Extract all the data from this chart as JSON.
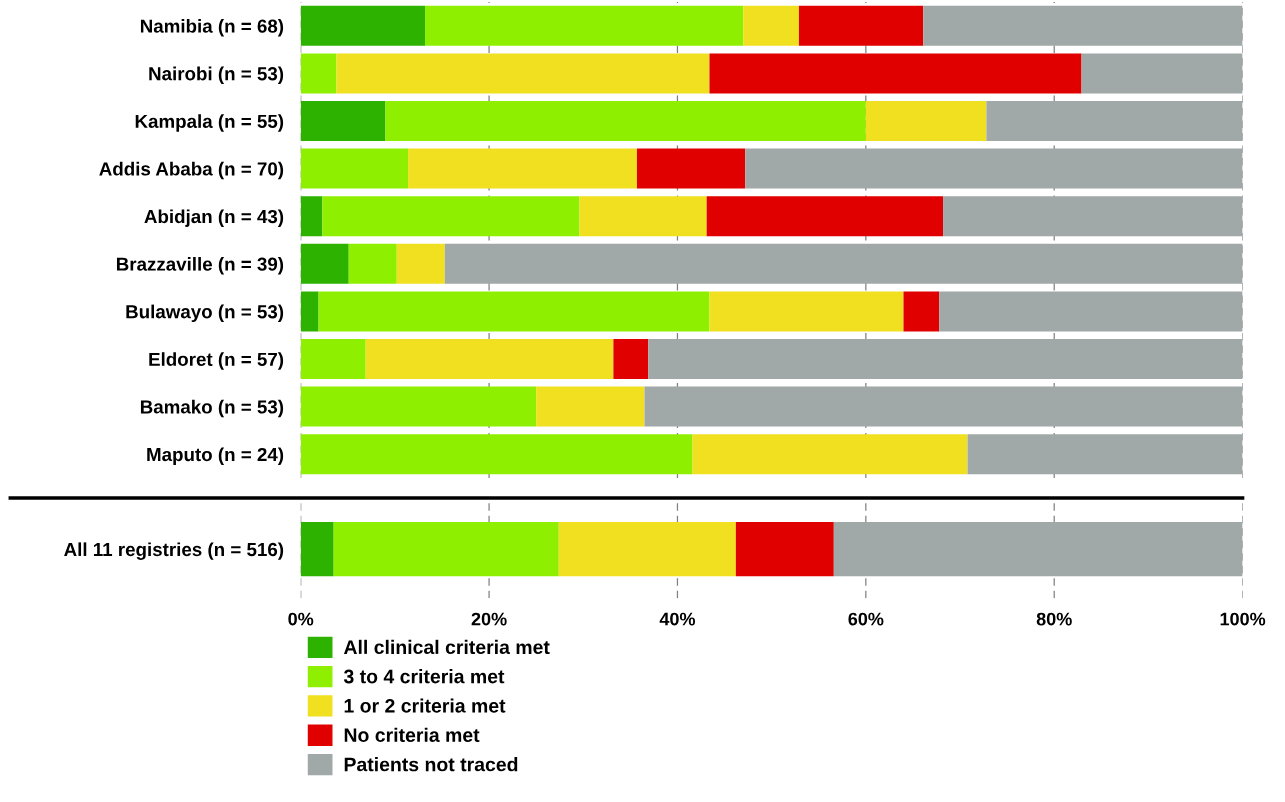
{
  "chart_data": [
    {
      "type": "bar",
      "orientation": "horizontal",
      "stacked": true,
      "tick_labels": "y",
      "grid": "x",
      "categories": [
        "Namibia (n = 68)",
        "Nairobi (n = 53)",
        "Kampala (n = 55)",
        "Addis Ababa (n = 70)",
        "Abidjan (n = 43)",
        "Brazzaville (n = 39)",
        "Bulawayo (n = 53)",
        "Eldoret (n = 57)",
        "Bamako (n = 53)",
        "Maputo (n = 24)"
      ],
      "xlim": [
        0,
        100
      ],
      "xticks": [
        {
          "value": 0,
          "label": null
        },
        {
          "value": 20,
          "label": null
        },
        {
          "value": 40,
          "label": null
        },
        {
          "value": 60,
          "label": null
        },
        {
          "value": 80,
          "label": null
        },
        {
          "value": 100,
          "label": null
        }
      ],
      "series": [
        {
          "color": "#2db200",
          "values": [
            13.2,
            0,
            9.0,
            0,
            2.3,
            5.1,
            1.9,
            0,
            0,
            0
          ]
        },
        {
          "color": "#8ef000",
          "values": [
            33.8,
            3.8,
            51.0,
            11.4,
            27.3,
            5.1,
            41.5,
            6.9,
            25.0,
            41.6
          ]
        },
        {
          "color": "#f0e020",
          "values": [
            5.9,
            39.6,
            12.8,
            24.3,
            13.5,
            5.1,
            20.6,
            26.3,
            11.5,
            29.2
          ]
        },
        {
          "color": "#e00000",
          "values": [
            13.2,
            39.5,
            0,
            11.5,
            25.1,
            0,
            3.8,
            3.7,
            0,
            0
          ]
        },
        {
          "color": "#a0a8a8",
          "values": [
            33.9,
            17.1,
            27.2,
            52.8,
            31.8,
            84.7,
            32.2,
            63.1,
            63.5,
            29.2
          ]
        }
      ]
    },
    {
      "type": "bar",
      "orientation": "horizontal",
      "stacked": true,
      "grid": "x",
      "legend": "bottom",
      "categories": [
        "All 11 registries (n = 516)"
      ],
      "xlim": [
        0,
        100
      ],
      "xticks": [
        {
          "value": 0,
          "label": "0%"
        },
        {
          "value": 20,
          "label": "20%"
        },
        {
          "value": 40,
          "label": "40%"
        },
        {
          "value": 60,
          "label": "60%"
        },
        {
          "value": 80,
          "label": "80%"
        },
        {
          "value": 100,
          "label": "100%"
        }
      ],
      "series": [
        {
          "name": "All clinical criteria met",
          "color": "#2db200",
          "values": [
            3.5
          ]
        },
        {
          "name": "3 to 4 criteria met",
          "color": "#8ef000",
          "values": [
            23.9
          ]
        },
        {
          "name": "1 or 2 criteria met",
          "color": "#f0e020",
          "values": [
            18.8
          ]
        },
        {
          "name": "No criteria met",
          "color": "#e00000",
          "values": [
            10.4
          ]
        },
        {
          "name": "Patients not traced",
          "color": "#a0a8a8",
          "values": [
            43.4
          ]
        }
      ]
    }
  ]
}
